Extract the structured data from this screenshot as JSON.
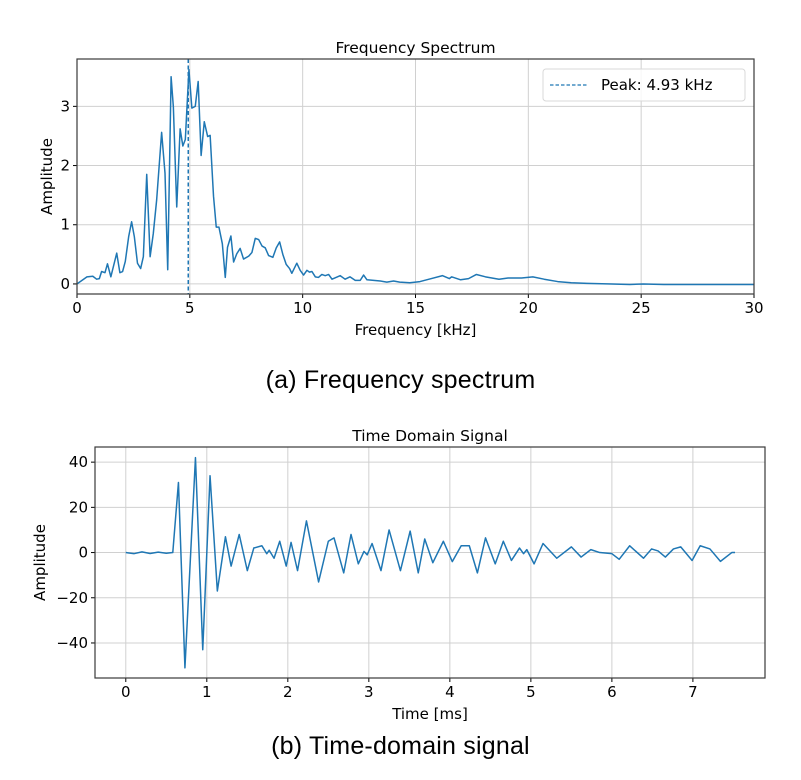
{
  "captions": {
    "a": "(a) Frequency spectrum",
    "b": "(b) Time-domain signal"
  },
  "colors": {
    "series": "#1f77b4",
    "grid": "#d0d0d0",
    "frame": "#3a3a3a"
  },
  "chart_data": [
    {
      "type": "line",
      "title": "Frequency Spectrum",
      "xlabel": "Frequency [kHz]",
      "ylabel": "Amplitude",
      "xlim": [
        0,
        30
      ],
      "ylim": [
        -0.17,
        3.8
      ],
      "xticks": [
        0,
        5,
        10,
        15,
        20,
        25,
        30
      ],
      "xtick_labels": [
        "0",
        "5",
        "10",
        "15",
        "20",
        "25",
        "30"
      ],
      "yticks": [
        0,
        1,
        2,
        3
      ],
      "ytick_labels": [
        "0",
        "1",
        "2",
        "3"
      ],
      "grid": true,
      "legend": {
        "position": "top-right",
        "entries": [
          "Peak: 4.93 kHz"
        ]
      },
      "vline": {
        "x": 4.93,
        "style": "dashed",
        "label": "Peak: 4.93 kHz"
      },
      "series": [
        {
          "name": "spectrum",
          "x": [
            0,
            0.44,
            0.7,
            0.87,
            0.99,
            1.09,
            1.24,
            1.35,
            1.5,
            1.76,
            1.9,
            2.02,
            2.14,
            2.29,
            2.42,
            2.54,
            2.68,
            2.82,
            2.94,
            3.09,
            3.24,
            3.38,
            3.53,
            3.75,
            3.9,
            4.02,
            4.17,
            4.27,
            4.42,
            4.57,
            4.69,
            4.8,
            4.96,
            5.09,
            5.24,
            5.37,
            5.5,
            5.64,
            5.79,
            5.9,
            6.05,
            6.17,
            6.29,
            6.44,
            6.57,
            6.67,
            6.82,
            6.94,
            7.08,
            7.23,
            7.38,
            7.61,
            7.75,
            7.9,
            8.05,
            8.2,
            8.34,
            8.49,
            8.68,
            8.83,
            8.98,
            9.12,
            9.27,
            9.42,
            9.52,
            9.74,
            9.89,
            10.04,
            10.19,
            10.3,
            10.41,
            10.56,
            10.7,
            10.85,
            11.0,
            11.15,
            11.3,
            11.66,
            11.88,
            12.1,
            12.33,
            12.55,
            12.7,
            12.85,
            13.44,
            13.73,
            14.03,
            14.3,
            14.75,
            15.2,
            15.6,
            16.2,
            16.5,
            16.6,
            17.0,
            17.35,
            17.7,
            18.1,
            18.7,
            19.1,
            19.7,
            20.2,
            20.7,
            21.3,
            21.9,
            22.6,
            23.7,
            24.5,
            25.1,
            26.0,
            30.0
          ],
          "y": [
            0,
            0.12,
            0.13,
            0.08,
            0.09,
            0.21,
            0.19,
            0.34,
            0.12,
            0.52,
            0.19,
            0.21,
            0.38,
            0.8,
            1.05,
            0.8,
            0.35,
            0.26,
            0.46,
            1.85,
            0.46,
            0.85,
            1.42,
            2.56,
            1.87,
            0.24,
            3.5,
            2.99,
            1.3,
            2.62,
            2.33,
            2.44,
            3.62,
            2.97,
            3.0,
            3.42,
            2.17,
            2.74,
            2.49,
            2.51,
            1.48,
            0.96,
            0.96,
            0.68,
            0.11,
            0.62,
            0.81,
            0.37,
            0.51,
            0.6,
            0.42,
            0.47,
            0.53,
            0.77,
            0.75,
            0.64,
            0.61,
            0.48,
            0.45,
            0.61,
            0.71,
            0.5,
            0.33,
            0.26,
            0.18,
            0.35,
            0.23,
            0.15,
            0.23,
            0.2,
            0.21,
            0.12,
            0.11,
            0.16,
            0.14,
            0.16,
            0.08,
            0.14,
            0.08,
            0.12,
            0.06,
            0.06,
            0.15,
            0.07,
            0.05,
            0.03,
            0.05,
            0.03,
            0.02,
            0.04,
            0.08,
            0.14,
            0.09,
            0.12,
            0.07,
            0.09,
            0.16,
            0.12,
            0.08,
            0.1,
            0.1,
            0.12,
            0.08,
            0.04,
            0.02,
            0.01,
            0.0,
            -0.01,
            0.0,
            -0.01,
            -0.01
          ]
        }
      ]
    },
    {
      "type": "line",
      "title": "Time Domain Signal",
      "xlabel": "Time [ms]",
      "ylabel": "Amplitude",
      "xlim": [
        -0.38,
        7.89
      ],
      "ylim": [
        -55.5,
        46.7
      ],
      "xticks": [
        0,
        1,
        2,
        3,
        4,
        5,
        6,
        7
      ],
      "xtick_labels": [
        "0",
        "1",
        "2",
        "3",
        "4",
        "5",
        "6",
        "7"
      ],
      "yticks": [
        40,
        20,
        0,
        -20,
        -40
      ],
      "ytick_labels": [
        "40",
        "20",
        "0",
        "−20",
        "−40"
      ],
      "grid": true,
      "series": [
        {
          "name": "signal",
          "x": [
            0,
            0.1,
            0.2,
            0.3,
            0.4,
            0.5,
            0.58,
            0.65,
            0.73,
            0.86,
            0.95,
            1.04,
            1.13,
            1.23,
            1.3,
            1.4,
            1.5,
            1.58,
            1.68,
            1.74,
            1.77,
            1.83,
            1.9,
            1.98,
            2.04,
            2.12,
            2.23,
            2.38,
            2.5,
            2.57,
            2.69,
            2.78,
            2.87,
            2.94,
            2.98,
            3.04,
            3.15,
            3.25,
            3.39,
            3.51,
            3.61,
            3.69,
            3.79,
            3.92,
            4.03,
            4.14,
            4.24,
            4.34,
            4.44,
            4.56,
            4.66,
            4.76,
            4.86,
            4.91,
            4.95,
            5.04,
            5.15,
            5.32,
            5.5,
            5.62,
            5.74,
            5.85,
            6.0,
            6.09,
            6.22,
            6.39,
            6.49,
            6.57,
            6.66,
            6.76,
            6.85,
            6.99,
            7.09,
            7.21,
            7.34,
            7.48,
            7.52
          ],
          "y": [
            0,
            -0.5,
            0.3,
            -0.4,
            0.2,
            -0.3,
            0,
            31,
            -51,
            42,
            -43,
            34,
            -17,
            7,
            -6,
            8,
            -8,
            2,
            3,
            -0.5,
            1,
            -2.5,
            5,
            -6,
            4.5,
            -8,
            14,
            -13,
            5,
            6.5,
            -9,
            8,
            -5,
            0.5,
            -1,
            4,
            -8,
            10,
            -8,
            9.5,
            -9,
            6,
            -4.5,
            5,
            -4,
            3,
            3,
            -9,
            6.5,
            -5,
            5,
            -3.5,
            2,
            -0.5,
            1.3,
            -5,
            4,
            -2.5,
            2.5,
            -2,
            1.3,
            0,
            -0.5,
            -3,
            3,
            -2.5,
            1.6,
            0.7,
            -2,
            1.6,
            2.5,
            -3.5,
            3,
            1.6,
            -3.9,
            0,
            0
          ]
        }
      ]
    }
  ]
}
